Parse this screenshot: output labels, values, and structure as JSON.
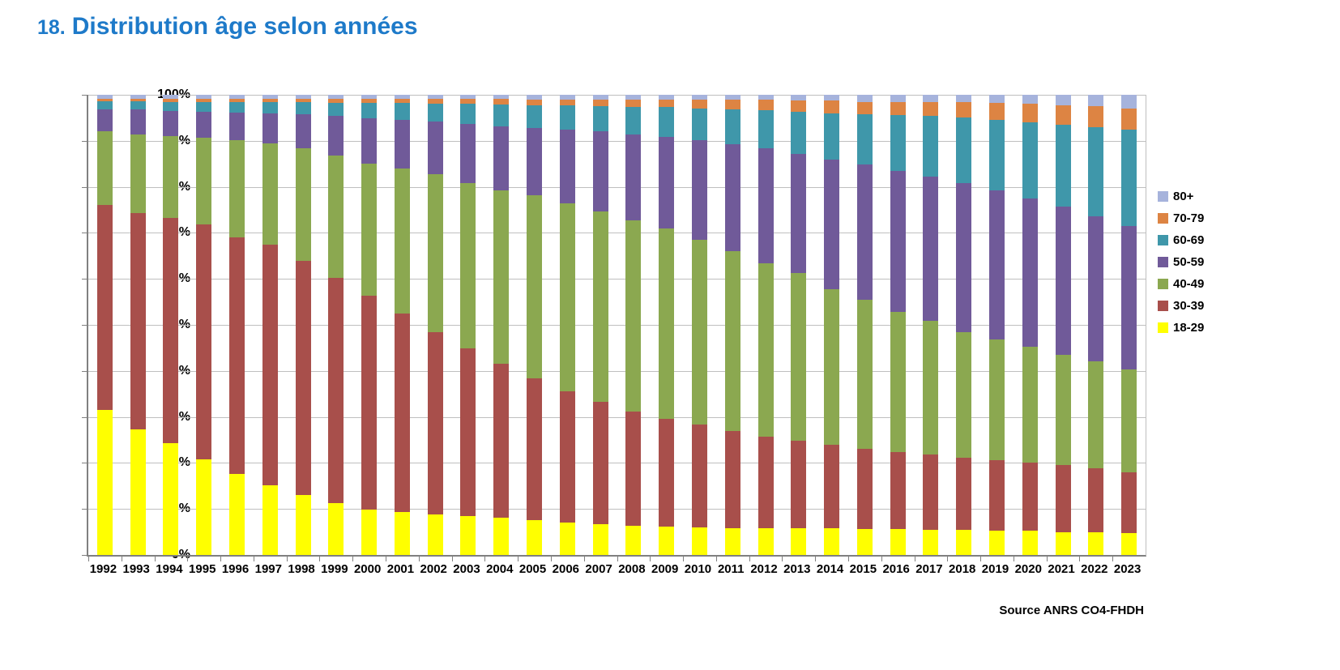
{
  "title": {
    "number": "18.",
    "text": "Distribution âge selon années"
  },
  "source": "Source ANRS CO4-FHDH",
  "colors": {
    "title_text": "#1E7AC9",
    "gridline": "#BFBFBF",
    "axis": "#808080",
    "label_text": "#000000"
  },
  "chart_data": {
    "type": "bar",
    "stacked": true,
    "percent_stacked": true,
    "title": "18. Distribution âge selon années",
    "xlabel": "",
    "ylabel": "",
    "ylim": [
      0,
      100
    ],
    "grid": true,
    "legend_position": "right",
    "y_ticks": [
      "0%",
      "10%",
      "20%",
      "30%",
      "40%",
      "50%",
      "60%",
      "70%",
      "80%",
      "90%",
      "100%"
    ],
    "categories": [
      "1992",
      "1993",
      "1994",
      "1995",
      "1996",
      "1997",
      "1998",
      "1999",
      "2000",
      "2001",
      "2002",
      "2003",
      "2004",
      "2005",
      "2006",
      "2007",
      "2008",
      "2009",
      "2010",
      "2011",
      "2012",
      "2013",
      "2014",
      "2015",
      "2016",
      "2017",
      "2018",
      "2019",
      "2020",
      "2021",
      "2022",
      "2023"
    ],
    "series": [
      {
        "name": "18-29",
        "color": "#FFFF00",
        "values": [
          31.5,
          27.3,
          24.3,
          20.8,
          17.6,
          15.2,
          13.1,
          11.2,
          9.9,
          9.3,
          8.8,
          8.5,
          8.1,
          7.6,
          7.1,
          6.7,
          6.4,
          6.2,
          6.0,
          5.9,
          5.9,
          5.8,
          5.8,
          5.7,
          5.6,
          5.5,
          5.4,
          5.3,
          5.2,
          5.0,
          4.9,
          4.8
        ]
      },
      {
        "name": "30-39",
        "color": "#A84F4B",
        "values": [
          44.5,
          47.0,
          48.9,
          51.0,
          51.5,
          52.2,
          50.8,
          49.1,
          46.4,
          43.1,
          39.7,
          36.4,
          33.4,
          30.8,
          28.4,
          26.5,
          24.7,
          23.4,
          22.4,
          21.1,
          19.8,
          19.0,
          18.2,
          17.4,
          16.7,
          16.3,
          15.8,
          15.3,
          14.8,
          14.5,
          13.9,
          13.2
        ]
      },
      {
        "name": "40-49",
        "color": "#8BA850",
        "values": [
          16.0,
          17.1,
          17.8,
          18.8,
          21.0,
          22.0,
          24.4,
          26.5,
          28.7,
          31.6,
          34.3,
          36.0,
          37.7,
          39.8,
          41.0,
          41.5,
          41.7,
          41.4,
          40.1,
          39.0,
          37.6,
          36.5,
          33.8,
          32.4,
          30.5,
          29.0,
          27.3,
          26.2,
          25.3,
          24.0,
          23.2,
          22.3
        ]
      },
      {
        "name": "50-59",
        "color": "#705A99",
        "values": [
          4.9,
          5.4,
          5.5,
          5.7,
          6.1,
          6.6,
          7.5,
          8.6,
          9.9,
          10.6,
          11.4,
          12.8,
          14.0,
          14.6,
          15.9,
          17.3,
          18.5,
          19.8,
          21.6,
          23.3,
          25.0,
          25.9,
          28.2,
          29.3,
          30.6,
          31.4,
          32.4,
          32.4,
          32.2,
          32.2,
          31.6,
          31.2
        ]
      },
      {
        "name": "60-69",
        "color": "#3F97AA",
        "values": [
          1.7,
          1.8,
          2.0,
          2.2,
          2.3,
          2.4,
          2.6,
          2.9,
          3.3,
          3.6,
          3.9,
          4.3,
          4.7,
          5.0,
          5.3,
          5.6,
          6.1,
          6.5,
          6.9,
          7.5,
          8.3,
          9.1,
          10.0,
          11.0,
          12.2,
          13.2,
          14.1,
          15.3,
          16.6,
          17.8,
          19.4,
          20.9
        ]
      },
      {
        "name": "70-79",
        "color": "#DD8443",
        "values": [
          0.6,
          0.6,
          0.7,
          0.7,
          0.7,
          0.8,
          0.8,
          0.9,
          0.9,
          0.9,
          1.0,
          1.1,
          1.2,
          1.2,
          1.3,
          1.4,
          1.6,
          1.6,
          1.9,
          2.1,
          2.3,
          2.5,
          2.7,
          2.7,
          2.9,
          3.1,
          3.4,
          3.7,
          4.0,
          4.3,
          4.5,
          4.7
        ]
      },
      {
        "name": "80+",
        "color": "#A6B3DC",
        "values": [
          0.8,
          0.8,
          0.8,
          0.8,
          0.8,
          0.8,
          0.8,
          0.8,
          0.9,
          0.9,
          0.9,
          0.9,
          0.9,
          1.0,
          1.0,
          1.0,
          1.0,
          1.1,
          1.1,
          1.1,
          1.1,
          1.2,
          1.3,
          1.5,
          1.5,
          1.5,
          1.6,
          1.8,
          1.9,
          2.2,
          2.5,
          2.9
        ]
      }
    ],
    "legend_order_top_to_bottom": [
      "80+",
      "70-79",
      "60-69",
      "50-59",
      "40-49",
      "30-39",
      "18-29"
    ]
  }
}
